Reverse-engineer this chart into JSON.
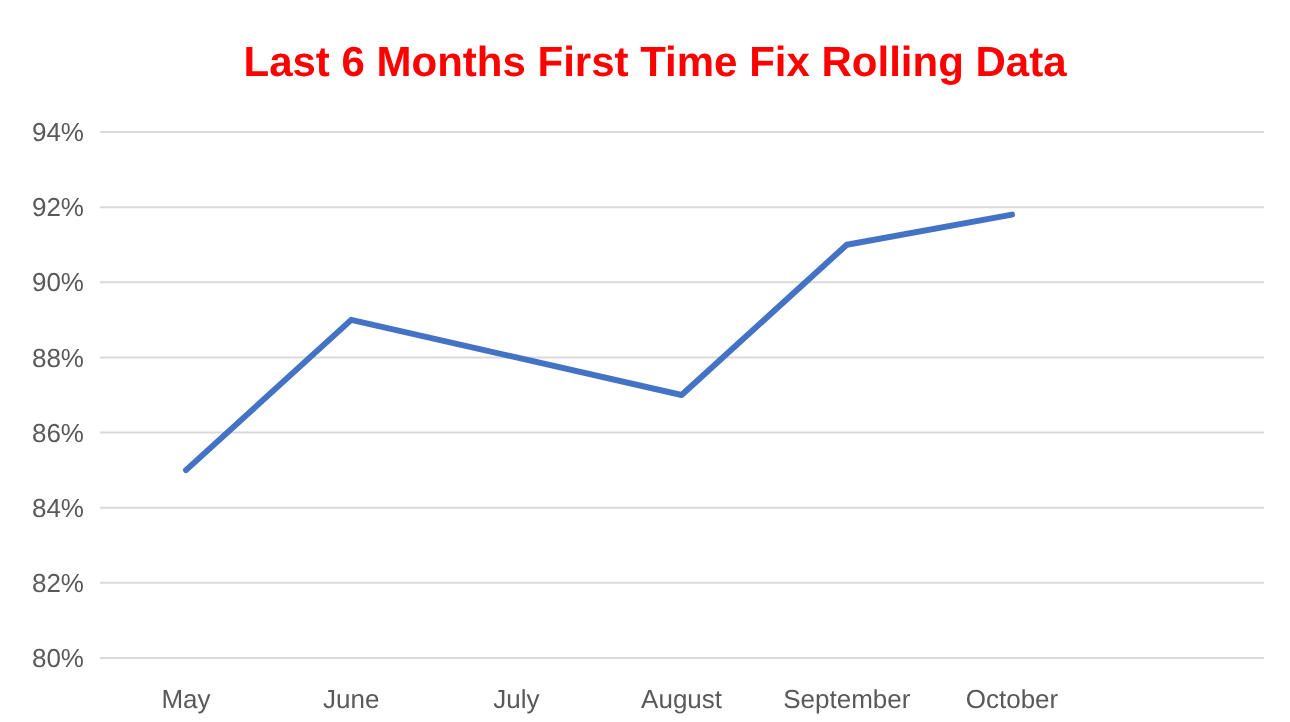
{
  "chart_data": {
    "type": "line",
    "title": "Last 6 Months First Time Fix Rolling Data",
    "categories": [
      "May",
      "June",
      "July",
      "August",
      "September",
      "October"
    ],
    "series": [
      {
        "color": "#4472c4",
        "values": [
          85,
          89,
          88,
          87,
          91,
          91.8
        ]
      }
    ],
    "ylim": [
      80,
      94
    ],
    "yticks": [
      {
        "value": 80,
        "label": "80%"
      },
      {
        "value": 82,
        "label": "82%"
      },
      {
        "value": 84,
        "label": "84%"
      },
      {
        "value": 86,
        "label": "86%"
      },
      {
        "value": 88,
        "label": "88%"
      },
      {
        "value": 90,
        "label": "90%"
      },
      {
        "value": 92,
        "label": "92%"
      },
      {
        "value": 94,
        "label": "94%"
      }
    ],
    "grid": "y",
    "marker": "none",
    "line_style": "solid"
  }
}
